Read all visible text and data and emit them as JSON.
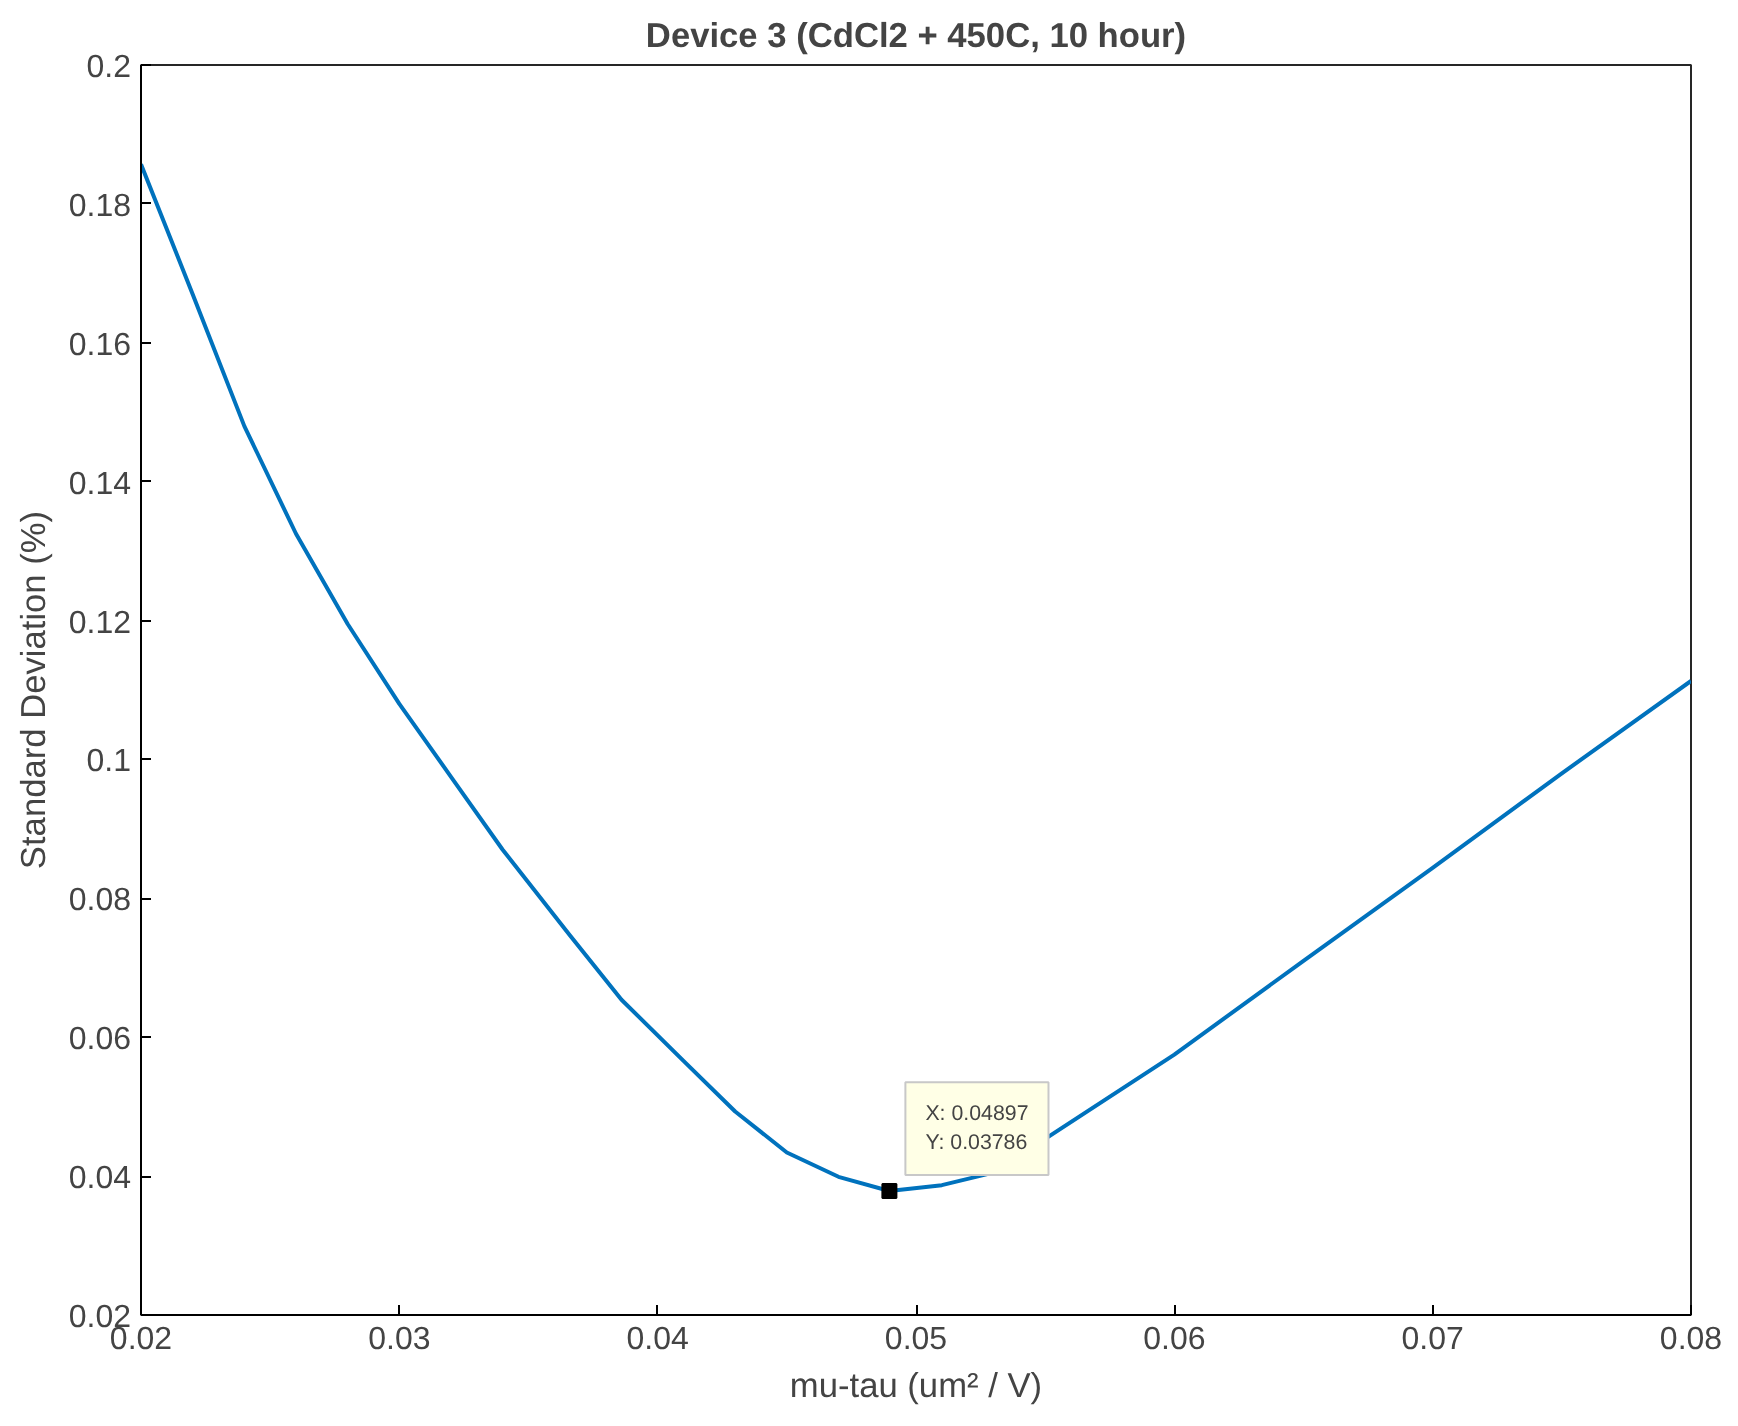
{
  "chart_data": {
    "type": "line",
    "title": "Device 3 (CdCl2 + 450C, 10 hour)",
    "xlabel": "mu-tau (um² / V)",
    "ylabel": "Standard Deviation (%)",
    "x": [
      0.02,
      0.022,
      0.024,
      0.026,
      0.028,
      0.03,
      0.032,
      0.034,
      0.0366,
      0.0386,
      0.041,
      0.043,
      0.045,
      0.047,
      0.04897,
      0.051,
      0.053,
      0.06,
      0.065,
      0.07,
      0.075,
      0.08
    ],
    "series": [
      {
        "color": "#0072bd",
        "values": [
          0.1857,
          0.167,
          0.148,
          0.1325,
          0.1195,
          0.108,
          0.0975,
          0.087,
          0.0747,
          0.0654,
          0.0566,
          0.0493,
          0.0434,
          0.0399,
          0.03786,
          0.0387,
          0.0405,
          0.0575,
          0.071,
          0.0844,
          0.098,
          0.1113
        ]
      }
    ],
    "annotations": [
      {
        "text": "X: 0.04897\nY: 0.03786",
        "x": 0.04897,
        "y": 0.03786
      }
    ],
    "xlim": [
      0.02,
      0.08
    ],
    "ylim": [
      0.02,
      0.2
    ],
    "xticks": [
      0.02,
      0.03,
      0.04,
      0.05,
      0.06,
      0.07,
      0.08
    ],
    "yticks": [
      0.02,
      0.04,
      0.06,
      0.08,
      0.1,
      0.12,
      0.14,
      0.16,
      0.18,
      0.2
    ],
    "grid": false,
    "line_style": "solid"
  }
}
